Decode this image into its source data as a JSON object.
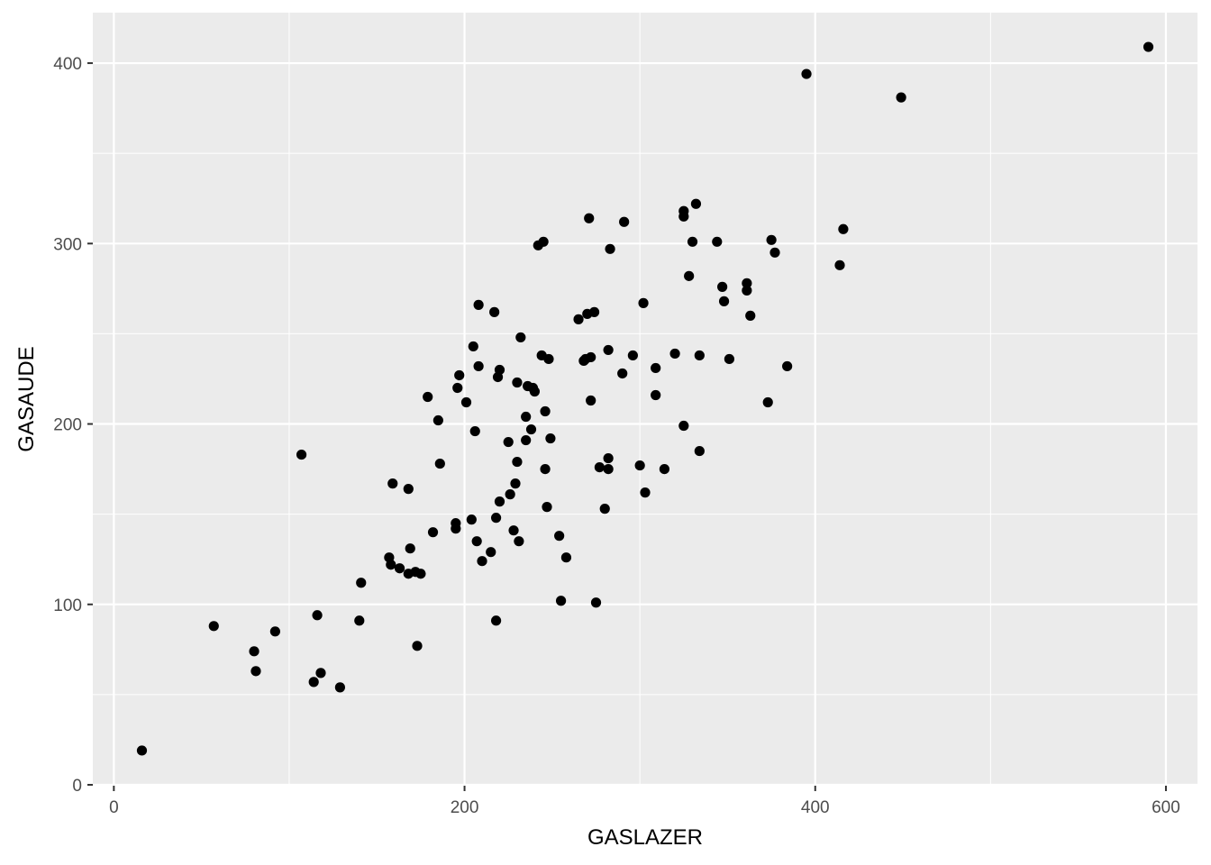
{
  "chart_data": {
    "type": "scatter",
    "title": "",
    "xlabel": "GASLAZER",
    "ylabel": "GASAUDE",
    "xlim": [
      -12,
      618
    ],
    "ylim": [
      -0.5,
      428
    ],
    "x_ticks": [
      0,
      200,
      400,
      600
    ],
    "y_ticks": [
      0,
      100,
      200,
      300,
      400
    ],
    "grid": true,
    "colors": {
      "panel": "#ebebeb",
      "grid": "#ffffff",
      "point": "#000000",
      "tick_text": "#4d4d4d"
    },
    "points": [
      [
        16,
        19
      ],
      [
        57,
        88
      ],
      [
        80,
        74
      ],
      [
        81,
        63
      ],
      [
        92,
        85
      ],
      [
        107,
        183
      ],
      [
        114,
        57
      ],
      [
        116,
        94
      ],
      [
        118,
        62
      ],
      [
        129,
        54
      ],
      [
        140,
        91
      ],
      [
        141,
        112
      ],
      [
        157,
        126
      ],
      [
        158,
        122
      ],
      [
        159,
        167
      ],
      [
        163,
        120
      ],
      [
        168,
        117
      ],
      [
        168,
        164
      ],
      [
        169,
        131
      ],
      [
        172,
        118
      ],
      [
        173,
        77
      ],
      [
        175,
        117
      ],
      [
        179,
        215
      ],
      [
        182,
        140
      ],
      [
        185,
        202
      ],
      [
        186,
        178
      ],
      [
        195,
        145
      ],
      [
        195,
        142
      ],
      [
        196,
        220
      ],
      [
        197,
        227
      ],
      [
        201,
        212
      ],
      [
        204,
        147
      ],
      [
        205,
        243
      ],
      [
        206,
        196
      ],
      [
        207,
        135
      ],
      [
        208,
        266
      ],
      [
        208,
        232
      ],
      [
        210,
        124
      ],
      [
        215,
        129
      ],
      [
        217,
        262
      ],
      [
        218,
        91
      ],
      [
        218,
        148
      ],
      [
        219,
        226
      ],
      [
        220,
        230
      ],
      [
        220,
        157
      ],
      [
        225,
        190
      ],
      [
        226,
        161
      ],
      [
        228,
        141
      ],
      [
        229,
        167
      ],
      [
        230,
        179
      ],
      [
        230,
        223
      ],
      [
        231,
        135
      ],
      [
        232,
        248
      ],
      [
        235,
        204
      ],
      [
        235,
        191
      ],
      [
        236,
        221
      ],
      [
        238,
        197
      ],
      [
        239,
        220
      ],
      [
        240,
        218
      ],
      [
        242,
        299
      ],
      [
        244,
        238
      ],
      [
        245,
        301
      ],
      [
        246,
        175
      ],
      [
        246,
        207
      ],
      [
        247,
        154
      ],
      [
        248,
        236
      ],
      [
        249,
        192
      ],
      [
        254,
        138
      ],
      [
        255,
        102
      ],
      [
        258,
        126
      ],
      [
        265,
        258
      ],
      [
        268,
        235
      ],
      [
        269,
        236
      ],
      [
        270,
        261
      ],
      [
        271,
        314
      ],
      [
        272,
        237
      ],
      [
        272,
        213
      ],
      [
        274,
        262
      ],
      [
        275,
        101
      ],
      [
        277,
        176
      ],
      [
        280,
        153
      ],
      [
        282,
        241
      ],
      [
        282,
        175
      ],
      [
        282,
        181
      ],
      [
        283,
        297
      ],
      [
        290,
        228
      ],
      [
        291,
        312
      ],
      [
        296,
        238
      ],
      [
        300,
        177
      ],
      [
        302,
        267
      ],
      [
        303,
        162
      ],
      [
        309,
        216
      ],
      [
        309,
        231
      ],
      [
        314,
        175
      ],
      [
        320,
        239
      ],
      [
        325,
        199
      ],
      [
        325,
        315
      ],
      [
        325,
        318
      ],
      [
        328,
        282
      ],
      [
        330,
        301
      ],
      [
        332,
        322
      ],
      [
        334,
        185
      ],
      [
        334,
        238
      ],
      [
        344,
        301
      ],
      [
        347,
        276
      ],
      [
        348,
        268
      ],
      [
        351,
        236
      ],
      [
        361,
        274
      ],
      [
        361,
        278
      ],
      [
        363,
        260
      ],
      [
        373,
        212
      ],
      [
        375,
        302
      ],
      [
        377,
        295
      ],
      [
        384,
        232
      ],
      [
        395,
        394
      ],
      [
        414,
        288
      ],
      [
        416,
        308
      ],
      [
        449,
        381
      ],
      [
        590,
        409
      ]
    ]
  }
}
